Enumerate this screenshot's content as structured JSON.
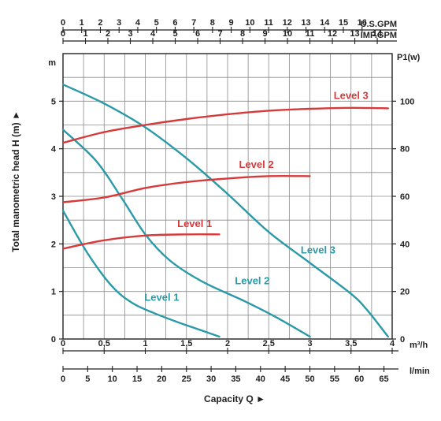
{
  "chart_data": {
    "type": "line",
    "title": "",
    "xlabel": "Capacity Q ►",
    "ylabel": "Total manometric head H (m) ►",
    "y_unit": "m",
    "y2_unit": "P1(w)",
    "xlim": [
      0,
      4
    ],
    "ylim": [
      0,
      6
    ],
    "y2lim": [
      0,
      120
    ],
    "grid": true,
    "x_axes": [
      {
        "id": "usgpm",
        "unit": "U.S.GPM",
        "position": "top",
        "ticks": [
          0,
          1,
          2,
          3,
          4,
          5,
          6,
          7,
          8,
          9,
          10,
          11,
          12,
          13,
          14,
          15,
          16
        ],
        "per_m3h": 4.4029
      },
      {
        "id": "impgpm",
        "unit": "IMP.GPM",
        "position": "top",
        "ticks": [
          0,
          1,
          2,
          3,
          4,
          5,
          6,
          7,
          8,
          9,
          10,
          11,
          12,
          13,
          14
        ],
        "per_m3h": 3.6662
      },
      {
        "id": "m3h",
        "unit": "m³/h",
        "position": "bottom",
        "ticks": [
          "0",
          "0,5",
          "1",
          "1,5",
          "2",
          "2,5",
          "3",
          "3,5",
          "4"
        ],
        "tick_values": [
          0,
          0.5,
          1,
          1.5,
          2,
          2.5,
          3,
          3.5,
          4
        ]
      },
      {
        "id": "lmin",
        "unit": "l/min",
        "position": "bottom",
        "ticks": [
          0,
          5,
          10,
          15,
          20,
          25,
          30,
          35,
          40,
          45,
          50,
          55,
          60,
          65
        ],
        "per_m3h": 16.6667
      }
    ],
    "y_ticks": [
      0,
      1,
      2,
      3,
      4,
      5
    ],
    "y2_ticks": [
      0,
      20,
      40,
      60,
      80,
      100
    ],
    "series": [
      {
        "name": "Level 1",
        "kind": "head",
        "axis": "left",
        "color": "#2a9aa8",
        "points": [
          [
            0,
            2.7
          ],
          [
            0.3,
            1.8
          ],
          [
            0.6,
            1.1
          ],
          [
            0.85,
            0.75
          ],
          [
            1.1,
            0.55
          ],
          [
            1.4,
            0.35
          ],
          [
            1.65,
            0.2
          ],
          [
            1.9,
            0.05
          ]
        ]
      },
      {
        "name": "Level 2",
        "kind": "head",
        "axis": "left",
        "color": "#2a9aa8",
        "points": [
          [
            0,
            4.4
          ],
          [
            0.4,
            3.75
          ],
          [
            0.7,
            3.0
          ],
          [
            1.0,
            2.2
          ],
          [
            1.3,
            1.65
          ],
          [
            1.7,
            1.2
          ],
          [
            2.2,
            0.8
          ],
          [
            2.6,
            0.45
          ],
          [
            3.0,
            0.05
          ]
        ]
      },
      {
        "name": "Level 3",
        "kind": "head",
        "axis": "left",
        "color": "#2a9aa8",
        "points": [
          [
            0,
            5.35
          ],
          [
            0.5,
            4.95
          ],
          [
            1.0,
            4.45
          ],
          [
            1.5,
            3.8
          ],
          [
            2.0,
            3.05
          ],
          [
            2.5,
            2.25
          ],
          [
            3.0,
            1.6
          ],
          [
            3.5,
            0.95
          ],
          [
            3.7,
            0.6
          ],
          [
            3.95,
            0.05
          ]
        ]
      },
      {
        "name": "Level 1",
        "kind": "power",
        "axis": "right",
        "color": "#d63a3a",
        "points": [
          [
            0,
            38
          ],
          [
            0.5,
            41.5
          ],
          [
            1.0,
            43.5
          ],
          [
            1.5,
            44
          ],
          [
            1.9,
            44
          ]
        ]
      },
      {
        "name": "Level 2",
        "kind": "power",
        "axis": "right",
        "color": "#d63a3a",
        "points": [
          [
            0,
            57.5
          ],
          [
            0.5,
            59.5
          ],
          [
            1.0,
            63.5
          ],
          [
            1.5,
            66
          ],
          [
            2.0,
            67.5
          ],
          [
            2.5,
            68.5
          ],
          [
            3.0,
            68.5
          ]
        ]
      },
      {
        "name": "Level 3",
        "kind": "power",
        "axis": "right",
        "color": "#d63a3a",
        "points": [
          [
            0,
            82.5
          ],
          [
            0.5,
            87
          ],
          [
            1.0,
            90
          ],
          [
            1.5,
            92.5
          ],
          [
            2.0,
            94.5
          ],
          [
            2.5,
            96
          ],
          [
            3.0,
            96.8
          ],
          [
            3.5,
            97.2
          ],
          [
            3.95,
            97
          ]
        ]
      }
    ],
    "labels": [
      {
        "text": "Level 1",
        "kind": "head",
        "color": "#2a9aa8",
        "at": [
          1.2,
          0.8
        ]
      },
      {
        "text": "Level 2",
        "kind": "head",
        "color": "#2a9aa8",
        "at": [
          2.3,
          1.15
        ]
      },
      {
        "text": "Level 3",
        "kind": "head",
        "color": "#2a9aa8",
        "at": [
          3.1,
          1.8
        ]
      },
      {
        "text": "Level 1",
        "kind": "power",
        "color": "#d63a3a",
        "at": [
          1.6,
          47
        ]
      },
      {
        "text": "Level 2",
        "kind": "power",
        "color": "#d63a3a",
        "at": [
          2.35,
          72
        ]
      },
      {
        "text": "Level 3",
        "kind": "power",
        "color": "#d63a3a",
        "at": [
          3.5,
          101
        ]
      }
    ]
  }
}
